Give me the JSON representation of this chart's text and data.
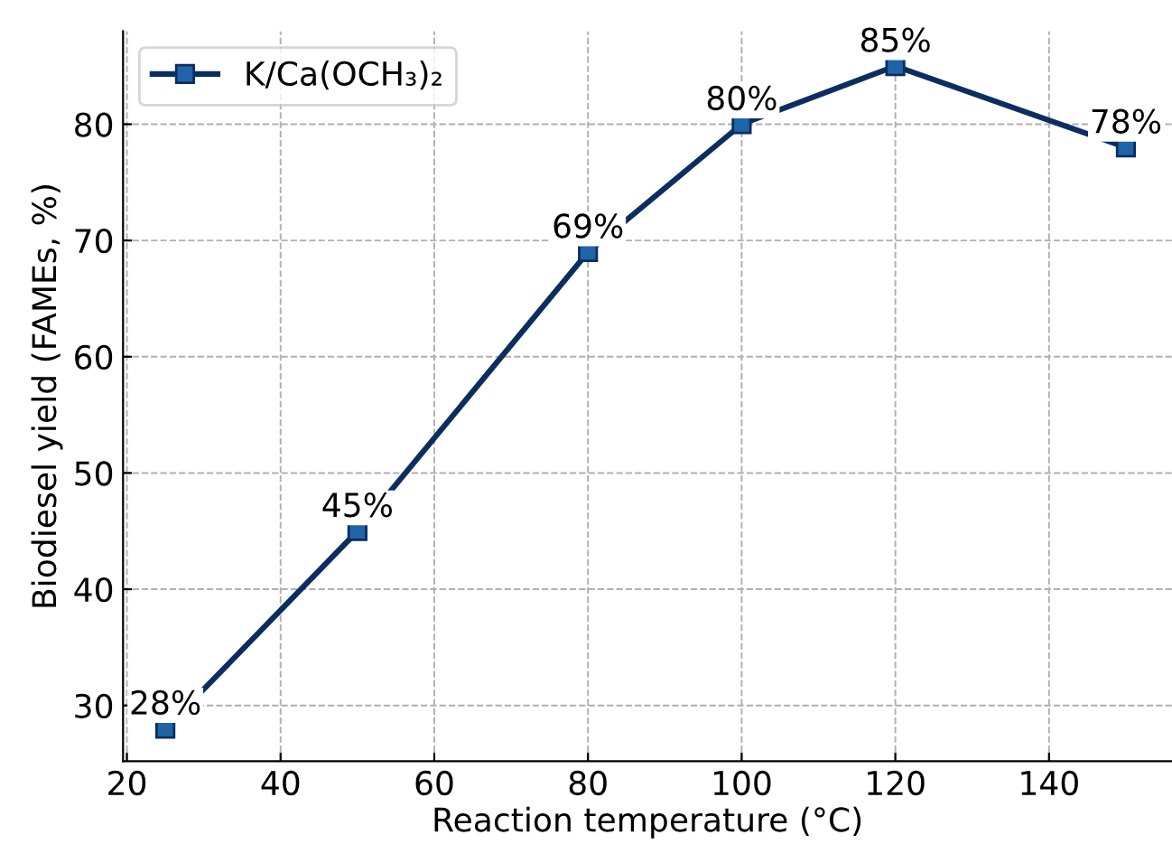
{
  "chart_data": {
    "type": "line",
    "xlabel": "Reaction temperature (°C)",
    "ylabel": "Biodiesel yield (FAMEs, %)",
    "x": [
      25,
      50,
      80,
      100,
      120,
      150
    ],
    "series": [
      {
        "name": "K/Ca(OCH₃)₂",
        "color": "#0b2e5e",
        "values": [
          28,
          45,
          69,
          80,
          85,
          78
        ],
        "value_labels": [
          "28%",
          "45%",
          "69%",
          "80%",
          "85%",
          "78%"
        ]
      }
    ],
    "xlim": [
      19.5,
      156
    ],
    "ylim": [
      25.2,
      88
    ],
    "xticks": [
      20,
      40,
      60,
      80,
      100,
      120,
      140
    ],
    "yticks": [
      30,
      40,
      50,
      60,
      70,
      80
    ],
    "grid": true,
    "legend": "top left",
    "marker": "square",
    "line_style": "solid"
  }
}
